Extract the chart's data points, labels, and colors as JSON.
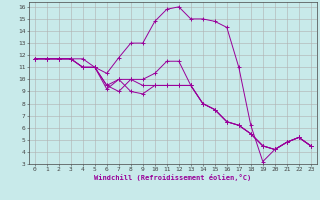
{
  "xlabel": "Windchill (Refroidissement éolien,°C)",
  "line_color": "#990099",
  "bg_color": "#c8eaea",
  "grid_color": "#b0b0b0",
  "xlim": [
    -0.5,
    23.5
  ],
  "ylim": [
    3,
    16.4
  ],
  "xticks": [
    0,
    1,
    2,
    3,
    4,
    5,
    6,
    7,
    8,
    9,
    10,
    11,
    12,
    13,
    14,
    15,
    16,
    17,
    18,
    19,
    20,
    21,
    22,
    23
  ],
  "yticks": [
    3,
    4,
    5,
    6,
    7,
    8,
    9,
    10,
    11,
    12,
    13,
    14,
    15,
    16
  ],
  "series": [
    [
      11.7,
      11.7,
      11.7,
      11.7,
      11.7,
      11.0,
      10.5,
      11.8,
      13.0,
      13.0,
      14.8,
      15.8,
      16.0,
      15.0,
      15.0,
      14.8,
      14.3,
      11.0,
      6.2,
      3.2,
      4.2,
      4.8,
      5.2,
      4.5
    ],
    [
      11.7,
      11.7,
      11.7,
      11.7,
      11.0,
      11.0,
      9.5,
      9.0,
      10.0,
      10.0,
      10.5,
      11.5,
      11.5,
      9.5,
      8.0,
      7.5,
      6.5,
      6.2,
      5.5,
      4.5,
      4.2,
      4.8,
      5.2,
      4.5
    ],
    [
      11.7,
      11.7,
      11.7,
      11.7,
      11.0,
      11.0,
      9.5,
      10.0,
      10.0,
      9.5,
      9.5,
      9.5,
      9.5,
      9.5,
      8.0,
      7.5,
      6.5,
      6.2,
      5.5,
      4.5,
      4.2,
      4.8,
      5.2,
      4.5
    ],
    [
      11.7,
      11.7,
      11.7,
      11.7,
      11.0,
      11.0,
      9.2,
      10.0,
      9.0,
      8.8,
      9.5,
      9.5,
      9.5,
      9.5,
      8.0,
      7.5,
      6.5,
      6.2,
      5.5,
      4.5,
      4.2,
      4.8,
      5.2,
      4.5
    ]
  ]
}
